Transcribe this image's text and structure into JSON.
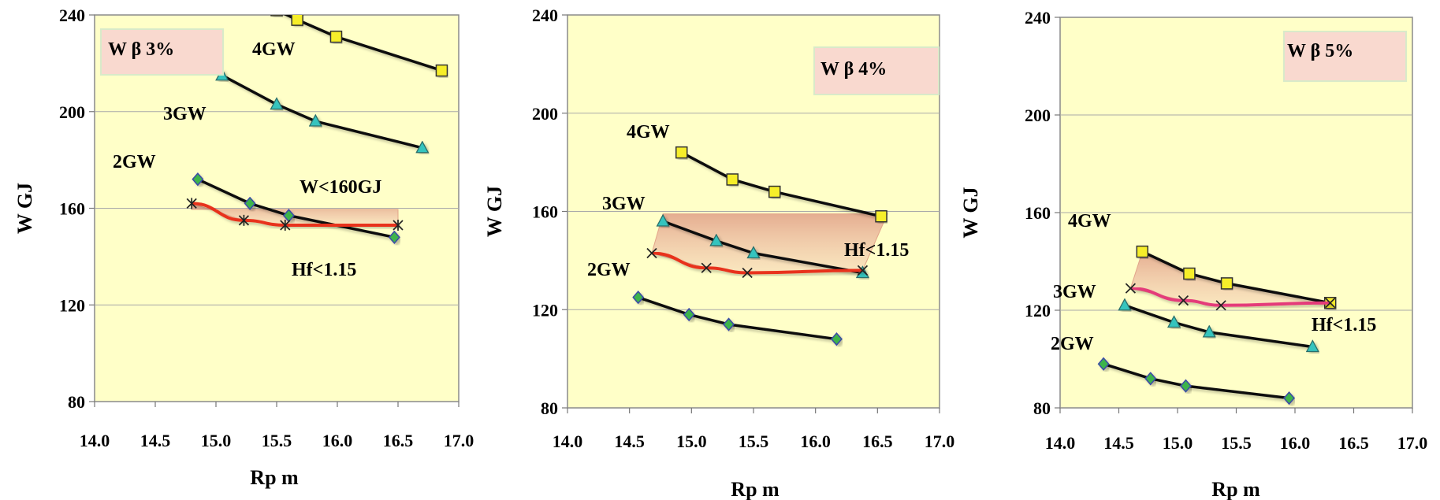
{
  "chart_data": [
    {
      "type": "line",
      "title": "",
      "xlabel": "Rp m",
      "ylabel": "W  GJ",
      "xlim": [
        14.0,
        17.0
      ],
      "ylim": [
        80,
        240
      ],
      "xticks": [
        "14.0",
        "14.5",
        "15.0",
        "15.5",
        "16.0",
        "16.5",
        "17.0"
      ],
      "yticks": [
        "80",
        "120",
        "160",
        "200",
        "240"
      ],
      "grid": "horizontal",
      "box_label": "W β 3%",
      "annotations": [
        "W<160GJ",
        "Hf<1.15"
      ],
      "series": [
        {
          "name": "4GW",
          "marker": "square",
          "color": "#f6ee2a",
          "x": [
            15.5,
            15.67,
            15.99,
            16.86
          ],
          "y": [
            242,
            238,
            231,
            217
          ]
        },
        {
          "name": "3GW",
          "marker": "triangle",
          "color": "#36c4be",
          "x": [
            15.05,
            15.5,
            15.82,
            16.7
          ],
          "y": [
            215,
            203,
            196,
            185
          ]
        },
        {
          "name": "2GW",
          "marker": "diamond",
          "color": "#3cb44b",
          "x": [
            14.85,
            15.28,
            15.6,
            16.47
          ],
          "y": [
            172,
            162,
            157,
            148
          ]
        },
        {
          "name": "",
          "marker": "asterisk",
          "color": "#e8321e",
          "x": [
            14.8,
            15.23,
            15.57,
            16.5
          ],
          "y": [
            162,
            155,
            153,
            153
          ]
        }
      ]
    },
    {
      "type": "line",
      "title": "",
      "xlabel": "Rp m",
      "ylabel": "W  GJ",
      "xlim": [
        14.0,
        17.0
      ],
      "ylim": [
        80,
        240
      ],
      "xticks": [
        "14.0",
        "14.5",
        "15.0",
        "15.5",
        "16.0",
        "16.5",
        "17.0"
      ],
      "yticks": [
        "80",
        "120",
        "160",
        "200",
        "240"
      ],
      "grid": "horizontal",
      "box_label": "W  β 4%",
      "annotations": [
        "Hf<1.15"
      ],
      "series": [
        {
          "name": "4GW",
          "marker": "square",
          "color": "#f6ee2a",
          "x": [
            14.92,
            15.33,
            15.67,
            16.53
          ],
          "y": [
            184,
            173,
            168,
            158
          ]
        },
        {
          "name": "3GW",
          "marker": "triangle",
          "color": "#36c4be",
          "x": [
            14.77,
            15.2,
            15.5,
            16.38
          ],
          "y": [
            156,
            148,
            143,
            135
          ]
        },
        {
          "name": "2GW",
          "marker": "diamond",
          "color": "#3cb44b",
          "x": [
            14.57,
            14.98,
            15.3,
            16.17
          ],
          "y": [
            125,
            118,
            114,
            108
          ]
        },
        {
          "name": "",
          "marker": "cross",
          "color": "#e8321e",
          "x": [
            14.68,
            15.12,
            15.45,
            16.38
          ],
          "y": [
            143,
            137,
            135,
            136
          ]
        }
      ]
    },
    {
      "type": "line",
      "title": "",
      "xlabel": "Rp m",
      "ylabel": "W  GJ",
      "xlim": [
        14.0,
        17.0
      ],
      "ylim": [
        80,
        240
      ],
      "xticks": [
        "14.0",
        "14.5",
        "15.0",
        "15.5",
        "16.0",
        "16.5",
        "17.0"
      ],
      "yticks": [
        "80",
        "120",
        "160",
        "200",
        "240"
      ],
      "grid": "horizontal",
      "box_label": "W β 5%",
      "annotations": [
        "Hf<1.15"
      ],
      "series": [
        {
          "name": "4GW",
          "marker": "square",
          "color": "#f6ee2a",
          "x": [
            14.7,
            15.1,
            15.42,
            16.3
          ],
          "y": [
            144,
            135,
            131,
            123
          ]
        },
        {
          "name": "3GW",
          "marker": "triangle",
          "color": "#36c4be",
          "x": [
            14.55,
            14.97,
            15.27,
            16.15
          ],
          "y": [
            122,
            115,
            111,
            105
          ]
        },
        {
          "name": "2GW",
          "marker": "diamond",
          "color": "#3cb44b",
          "x": [
            14.37,
            14.77,
            15.07,
            15.95
          ],
          "y": [
            98,
            92,
            89,
            84
          ]
        },
        {
          "name": "",
          "marker": "cross",
          "color": "#e43b7a",
          "x": [
            14.6,
            15.05,
            15.37,
            16.3
          ],
          "y": [
            129,
            124,
            122,
            123
          ]
        }
      ]
    }
  ]
}
